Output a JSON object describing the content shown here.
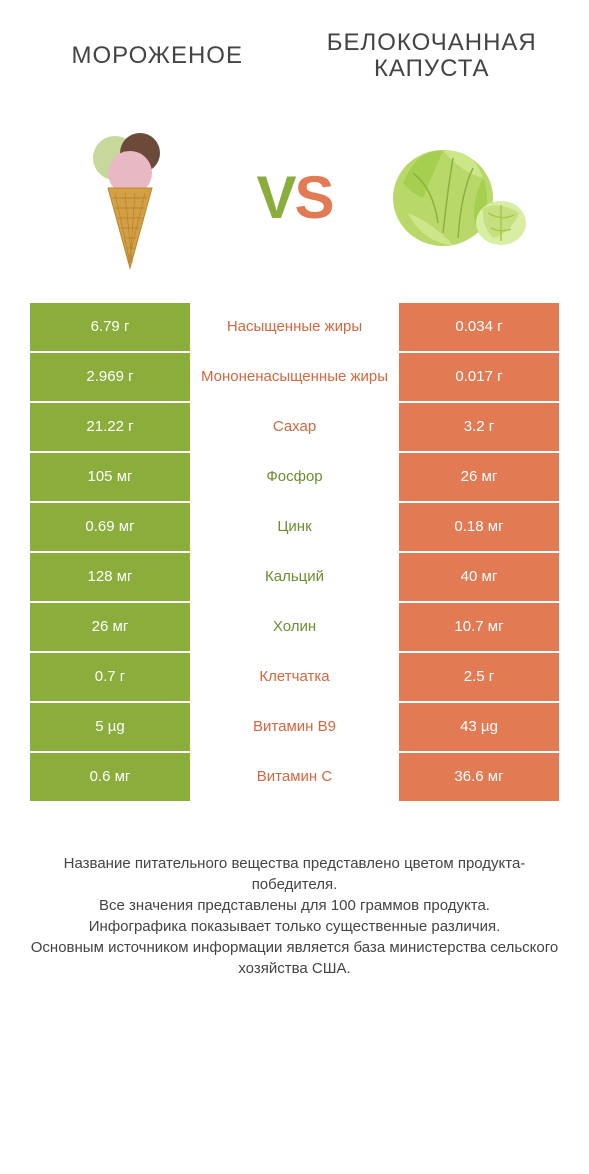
{
  "colors": {
    "green": "#8aad3c",
    "orange": "#e27a53",
    "mid_green_text": "#6b8e2f",
    "mid_orange_text": "#d3683f",
    "bg": "#ffffff"
  },
  "header": {
    "left": "МОРОЖЕНОЕ",
    "right": "БЕЛОКОЧАННАЯ КАПУСТА"
  },
  "vs": {
    "v": "V",
    "s": "S"
  },
  "rows": [
    {
      "left": "6.79 г",
      "mid": "Насыщенные жиры",
      "right": "0.034 г",
      "winner": "right"
    },
    {
      "left": "2.969 г",
      "mid": "Мононенасыщенные жиры",
      "right": "0.017 г",
      "winner": "right"
    },
    {
      "left": "21.22 г",
      "mid": "Сахар",
      "right": "3.2 г",
      "winner": "right"
    },
    {
      "left": "105 мг",
      "mid": "Фосфор",
      "right": "26 мг",
      "winner": "left"
    },
    {
      "left": "0.69 мг",
      "mid": "Цинк",
      "right": "0.18 мг",
      "winner": "left"
    },
    {
      "left": "128 мг",
      "mid": "Кальций",
      "right": "40 мг",
      "winner": "left"
    },
    {
      "left": "26 мг",
      "mid": "Холин",
      "right": "10.7 мг",
      "winner": "left"
    },
    {
      "left": "0.7 г",
      "mid": "Клетчатка",
      "right": "2.5 г",
      "winner": "right"
    },
    {
      "left": "5 µg",
      "mid": "Витамин B9",
      "right": "43 µg",
      "winner": "right"
    },
    {
      "left": "0.6 мг",
      "mid": "Витамин C",
      "right": "36.6 мг",
      "winner": "right"
    }
  ],
  "footer": {
    "line1": "Название питательного вещества представлено цветом продукта-победителя.",
    "line2": "Все значения представлены для 100 граммов продукта.",
    "line3": "Инфографика показывает только существенные различия.",
    "line4": "Основным источником информации является база министерства сельского хозяйства США."
  },
  "icons": {
    "left": "ice-cream",
    "right": "cabbage"
  }
}
